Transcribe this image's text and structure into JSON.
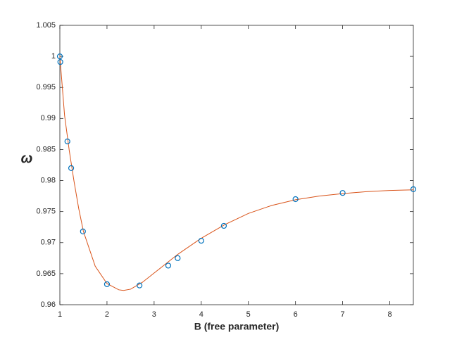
{
  "chart_data": {
    "type": "scatter",
    "xlabel": "B (free parameter)",
    "ylabel": "ω",
    "xlim": [
      1,
      8.5
    ],
    "xticks": [
      1,
      2,
      3,
      4,
      5,
      6,
      7,
      8
    ],
    "ylim": [
      0.96,
      1.005
    ],
    "yticks": [
      0.96,
      0.965,
      0.97,
      0.975,
      0.98,
      0.985,
      0.99,
      0.995,
      1,
      1.005
    ],
    "grid": false,
    "series": [
      {
        "mode": "markers",
        "color": "#0072bd",
        "x": [
          1,
          1.01,
          1.16,
          1.24,
          1.49,
          2,
          2.69,
          3.3,
          3.5,
          4,
          4.48,
          6,
          7,
          8.5
        ],
        "values": [
          1.0,
          0.9991,
          0.9863,
          0.982,
          0.9718,
          0.9633,
          0.9631,
          0.9663,
          0.9675,
          0.9703,
          0.9727,
          0.977,
          0.978,
          0.9786
        ]
      },
      {
        "mode": "line",
        "color": "#d95319",
        "x": [
          1,
          1.1,
          1.2,
          1.3,
          1.4,
          1.5,
          1.75,
          2,
          2.25,
          2.35,
          2.5,
          2.75,
          3,
          3.25,
          3.5,
          4,
          4.5,
          5,
          5.5,
          6,
          6.5,
          7,
          7.5,
          8,
          8.5
        ],
        "values": [
          1.0,
          0.9905,
          0.9848,
          0.9799,
          0.9755,
          0.9718,
          0.9662,
          0.9634,
          0.9624,
          0.9623,
          0.9625,
          0.9636,
          0.9651,
          0.9666,
          0.9681,
          0.9707,
          0.9729,
          0.9747,
          0.976,
          0.9769,
          0.9775,
          0.9779,
          0.9782,
          0.9784,
          0.9785
        ]
      }
    ]
  }
}
